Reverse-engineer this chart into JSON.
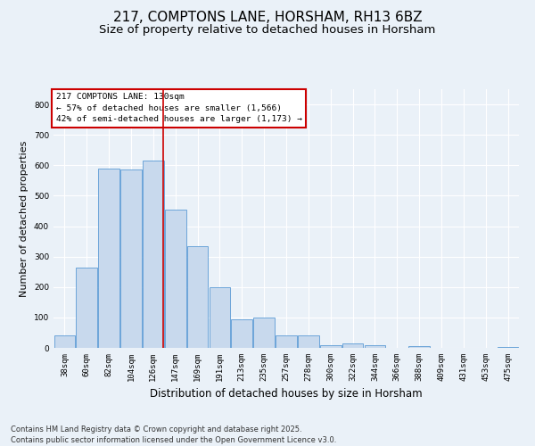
{
  "title": "217, COMPTONS LANE, HORSHAM, RH13 6BZ",
  "subtitle": "Size of property relative to detached houses in Horsham",
  "xlabel": "Distribution of detached houses by size in Horsham",
  "ylabel": "Number of detached properties",
  "categories": [
    "38sqm",
    "60sqm",
    "82sqm",
    "104sqm",
    "126sqm",
    "147sqm",
    "169sqm",
    "191sqm",
    "213sqm",
    "235sqm",
    "257sqm",
    "278sqm",
    "300sqm",
    "322sqm",
    "344sqm",
    "366sqm",
    "388sqm",
    "409sqm",
    "431sqm",
    "453sqm",
    "475sqm"
  ],
  "values": [
    40,
    265,
    590,
    585,
    615,
    455,
    335,
    200,
    95,
    100,
    40,
    40,
    10,
    15,
    10,
    0,
    5,
    0,
    0,
    0,
    2
  ],
  "bar_color": "#c8d9ed",
  "bar_edge_color": "#5b9bd5",
  "background_color": "#eaf1f8",
  "plot_bg_color": "#eaf1f8",
  "grid_color": "#ffffff",
  "vline_x_index": 4.45,
  "vline_color": "#cc0000",
  "annotation_box_text": "217 COMPTONS LANE: 130sqm\n← 57% of detached houses are smaller (1,566)\n42% of semi-detached houses are larger (1,173) →",
  "annotation_box_color": "#cc0000",
  "footer": "Contains HM Land Registry data © Crown copyright and database right 2025.\nContains public sector information licensed under the Open Government Licence v3.0.",
  "ylim": [
    0,
    850
  ],
  "yticks": [
    0,
    100,
    200,
    300,
    400,
    500,
    600,
    700,
    800
  ],
  "title_fontsize": 11,
  "subtitle_fontsize": 9.5,
  "xlabel_fontsize": 8.5,
  "ylabel_fontsize": 8,
  "tick_fontsize": 6.5,
  "footer_fontsize": 6,
  "ann_fontsize": 6.8
}
